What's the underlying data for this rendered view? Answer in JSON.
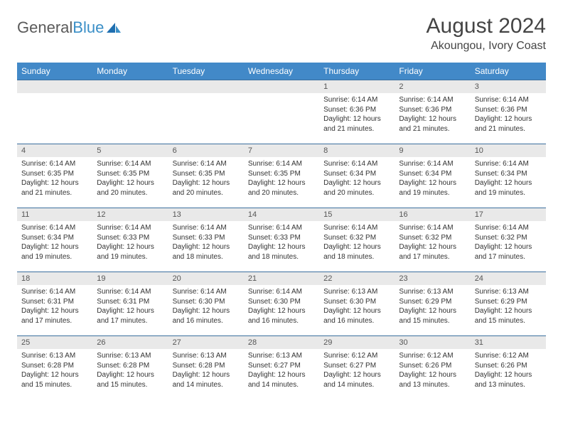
{
  "brand": {
    "name_a": "General",
    "name_b": "Blue"
  },
  "title": "August 2024",
  "location": "Akoungou, Ivory Coast",
  "colors": {
    "header_bg": "#4289c8",
    "header_text": "#ffffff",
    "divider": "#3b6f9e",
    "daynum_bg": "#e9e9e9",
    "text": "#333333",
    "brand_gray": "#5a5a5a",
    "brand_blue": "#3b8fc7",
    "page_bg": "#ffffff"
  },
  "day_names": [
    "Sunday",
    "Monday",
    "Tuesday",
    "Wednesday",
    "Thursday",
    "Friday",
    "Saturday"
  ],
  "weeks": [
    [
      {
        "n": "",
        "sr": "",
        "ss": "",
        "dl": ""
      },
      {
        "n": "",
        "sr": "",
        "ss": "",
        "dl": ""
      },
      {
        "n": "",
        "sr": "",
        "ss": "",
        "dl": ""
      },
      {
        "n": "",
        "sr": "",
        "ss": "",
        "dl": ""
      },
      {
        "n": "1",
        "sr": "Sunrise: 6:14 AM",
        "ss": "Sunset: 6:36 PM",
        "dl": "Daylight: 12 hours and 21 minutes."
      },
      {
        "n": "2",
        "sr": "Sunrise: 6:14 AM",
        "ss": "Sunset: 6:36 PM",
        "dl": "Daylight: 12 hours and 21 minutes."
      },
      {
        "n": "3",
        "sr": "Sunrise: 6:14 AM",
        "ss": "Sunset: 6:36 PM",
        "dl": "Daylight: 12 hours and 21 minutes."
      }
    ],
    [
      {
        "n": "4",
        "sr": "Sunrise: 6:14 AM",
        "ss": "Sunset: 6:35 PM",
        "dl": "Daylight: 12 hours and 21 minutes."
      },
      {
        "n": "5",
        "sr": "Sunrise: 6:14 AM",
        "ss": "Sunset: 6:35 PM",
        "dl": "Daylight: 12 hours and 20 minutes."
      },
      {
        "n": "6",
        "sr": "Sunrise: 6:14 AM",
        "ss": "Sunset: 6:35 PM",
        "dl": "Daylight: 12 hours and 20 minutes."
      },
      {
        "n": "7",
        "sr": "Sunrise: 6:14 AM",
        "ss": "Sunset: 6:35 PM",
        "dl": "Daylight: 12 hours and 20 minutes."
      },
      {
        "n": "8",
        "sr": "Sunrise: 6:14 AM",
        "ss": "Sunset: 6:34 PM",
        "dl": "Daylight: 12 hours and 20 minutes."
      },
      {
        "n": "9",
        "sr": "Sunrise: 6:14 AM",
        "ss": "Sunset: 6:34 PM",
        "dl": "Daylight: 12 hours and 19 minutes."
      },
      {
        "n": "10",
        "sr": "Sunrise: 6:14 AM",
        "ss": "Sunset: 6:34 PM",
        "dl": "Daylight: 12 hours and 19 minutes."
      }
    ],
    [
      {
        "n": "11",
        "sr": "Sunrise: 6:14 AM",
        "ss": "Sunset: 6:34 PM",
        "dl": "Daylight: 12 hours and 19 minutes."
      },
      {
        "n": "12",
        "sr": "Sunrise: 6:14 AM",
        "ss": "Sunset: 6:33 PM",
        "dl": "Daylight: 12 hours and 19 minutes."
      },
      {
        "n": "13",
        "sr": "Sunrise: 6:14 AM",
        "ss": "Sunset: 6:33 PM",
        "dl": "Daylight: 12 hours and 18 minutes."
      },
      {
        "n": "14",
        "sr": "Sunrise: 6:14 AM",
        "ss": "Sunset: 6:33 PM",
        "dl": "Daylight: 12 hours and 18 minutes."
      },
      {
        "n": "15",
        "sr": "Sunrise: 6:14 AM",
        "ss": "Sunset: 6:32 PM",
        "dl": "Daylight: 12 hours and 18 minutes."
      },
      {
        "n": "16",
        "sr": "Sunrise: 6:14 AM",
        "ss": "Sunset: 6:32 PM",
        "dl": "Daylight: 12 hours and 17 minutes."
      },
      {
        "n": "17",
        "sr": "Sunrise: 6:14 AM",
        "ss": "Sunset: 6:32 PM",
        "dl": "Daylight: 12 hours and 17 minutes."
      }
    ],
    [
      {
        "n": "18",
        "sr": "Sunrise: 6:14 AM",
        "ss": "Sunset: 6:31 PM",
        "dl": "Daylight: 12 hours and 17 minutes."
      },
      {
        "n": "19",
        "sr": "Sunrise: 6:14 AM",
        "ss": "Sunset: 6:31 PM",
        "dl": "Daylight: 12 hours and 17 minutes."
      },
      {
        "n": "20",
        "sr": "Sunrise: 6:14 AM",
        "ss": "Sunset: 6:30 PM",
        "dl": "Daylight: 12 hours and 16 minutes."
      },
      {
        "n": "21",
        "sr": "Sunrise: 6:14 AM",
        "ss": "Sunset: 6:30 PM",
        "dl": "Daylight: 12 hours and 16 minutes."
      },
      {
        "n": "22",
        "sr": "Sunrise: 6:13 AM",
        "ss": "Sunset: 6:30 PM",
        "dl": "Daylight: 12 hours and 16 minutes."
      },
      {
        "n": "23",
        "sr": "Sunrise: 6:13 AM",
        "ss": "Sunset: 6:29 PM",
        "dl": "Daylight: 12 hours and 15 minutes."
      },
      {
        "n": "24",
        "sr": "Sunrise: 6:13 AM",
        "ss": "Sunset: 6:29 PM",
        "dl": "Daylight: 12 hours and 15 minutes."
      }
    ],
    [
      {
        "n": "25",
        "sr": "Sunrise: 6:13 AM",
        "ss": "Sunset: 6:28 PM",
        "dl": "Daylight: 12 hours and 15 minutes."
      },
      {
        "n": "26",
        "sr": "Sunrise: 6:13 AM",
        "ss": "Sunset: 6:28 PM",
        "dl": "Daylight: 12 hours and 15 minutes."
      },
      {
        "n": "27",
        "sr": "Sunrise: 6:13 AM",
        "ss": "Sunset: 6:28 PM",
        "dl": "Daylight: 12 hours and 14 minutes."
      },
      {
        "n": "28",
        "sr": "Sunrise: 6:13 AM",
        "ss": "Sunset: 6:27 PM",
        "dl": "Daylight: 12 hours and 14 minutes."
      },
      {
        "n": "29",
        "sr": "Sunrise: 6:12 AM",
        "ss": "Sunset: 6:27 PM",
        "dl": "Daylight: 12 hours and 14 minutes."
      },
      {
        "n": "30",
        "sr": "Sunrise: 6:12 AM",
        "ss": "Sunset: 6:26 PM",
        "dl": "Daylight: 12 hours and 13 minutes."
      },
      {
        "n": "31",
        "sr": "Sunrise: 6:12 AM",
        "ss": "Sunset: 6:26 PM",
        "dl": "Daylight: 12 hours and 13 minutes."
      }
    ]
  ]
}
